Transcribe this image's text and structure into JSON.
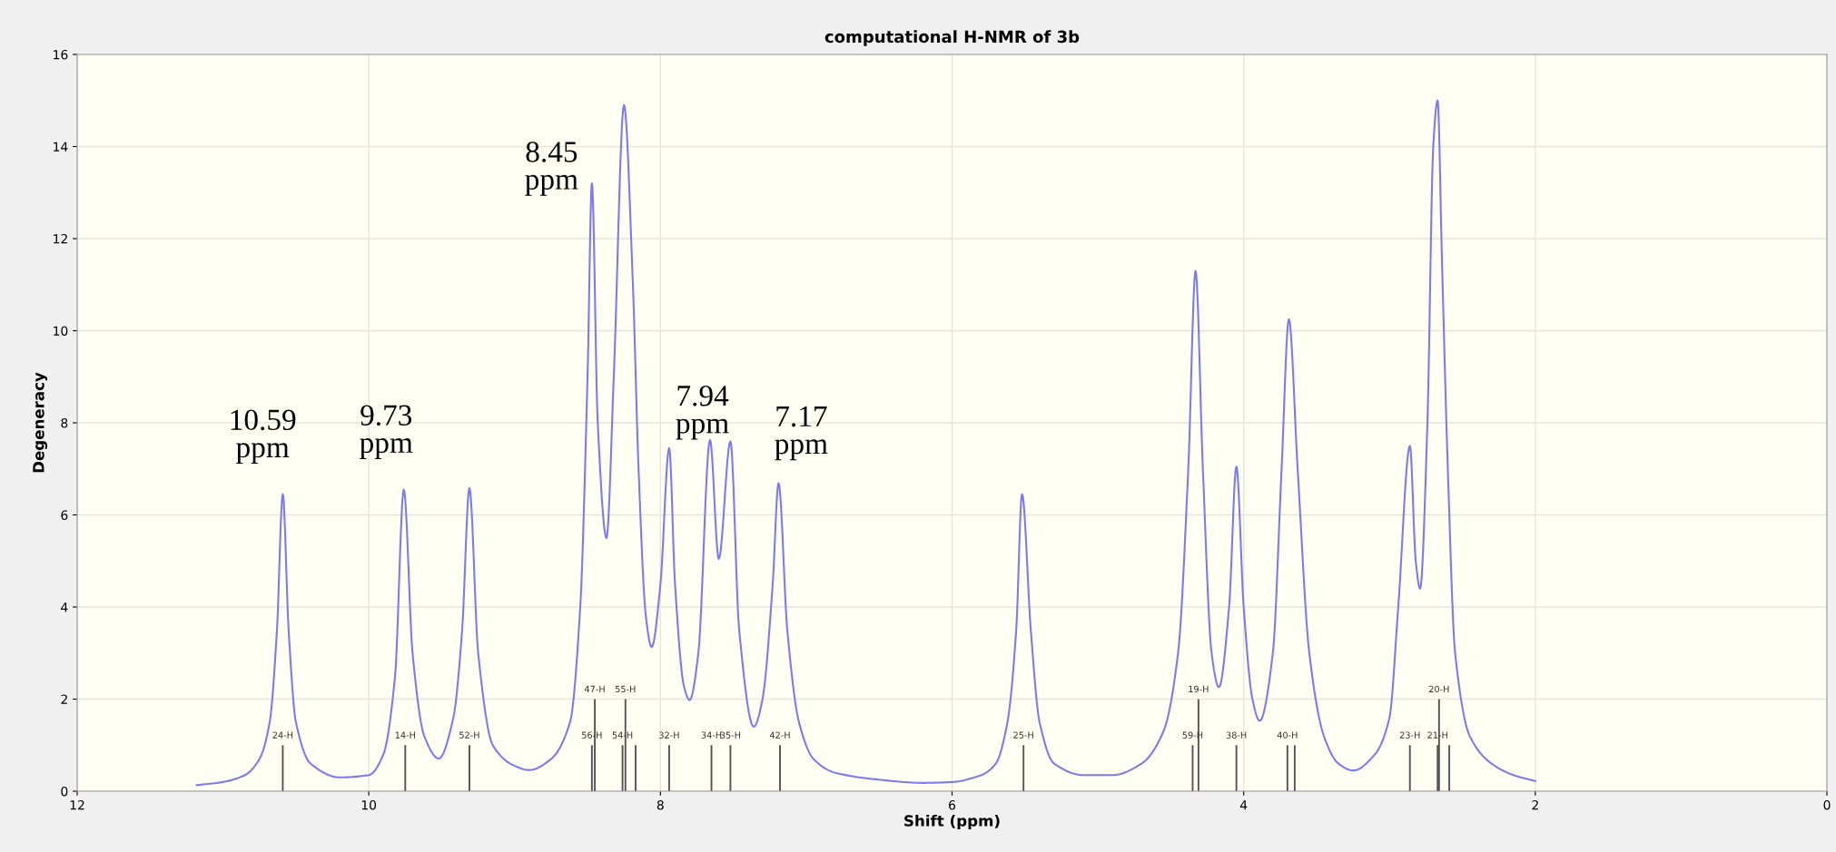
{
  "chart_data": {
    "type": "line",
    "title": "computational H-NMR of 3b",
    "xlabel": "Shift (ppm)",
    "ylabel": "Degeneracy",
    "xlim": [
      12,
      0
    ],
    "xticks": [
      12,
      10,
      8,
      6,
      4,
      2,
      0
    ],
    "ylim": [
      0,
      16
    ],
    "yticks": [
      0,
      2,
      4,
      6,
      8,
      10,
      12,
      14,
      16
    ],
    "grid": true,
    "legend": false,
    "marker": "none",
    "line_style": "solid",
    "series": [
      {
        "color": "#7b7bef",
        "x": [
          11.18,
          11.0,
          10.85,
          10.75,
          10.68,
          10.63,
          10.59,
          10.55,
          10.5,
          10.4,
          10.2,
          10.0,
          9.9,
          9.82,
          9.76,
          9.7,
          9.62,
          9.52,
          9.42,
          9.36,
          9.31,
          9.25,
          9.15,
          9.0,
          8.9,
          8.75,
          8.62,
          8.55,
          8.5,
          8.47,
          8.43,
          8.37,
          8.32,
          8.25,
          8.19,
          8.15,
          8.1,
          8.06,
          8.0,
          7.94,
          7.9,
          7.84,
          7.8,
          7.74,
          7.66,
          7.6,
          7.52,
          7.46,
          7.36,
          7.3,
          7.23,
          7.19,
          7.13,
          7.05,
          6.95,
          6.8,
          6.5,
          6.2,
          6.0,
          5.8,
          5.7,
          5.62,
          5.56,
          5.52,
          5.46,
          5.4,
          5.3,
          5.1,
          4.9,
          4.7,
          4.55,
          4.45,
          4.38,
          4.33,
          4.28,
          4.22,
          4.17,
          4.1,
          4.05,
          4.0,
          3.94,
          3.89,
          3.8,
          3.74,
          3.69,
          3.63,
          3.55,
          3.45,
          3.35,
          3.25,
          3.1,
          3.0,
          2.94,
          2.86,
          2.82,
          2.79,
          2.74,
          2.7,
          2.67,
          2.64,
          2.6,
          2.55,
          2.45,
          2.3,
          2.15,
          2.0
        ],
        "values": [
          0.13,
          0.2,
          0.35,
          0.7,
          1.5,
          3.5,
          6.45,
          3.5,
          1.5,
          0.6,
          0.3,
          0.35,
          0.8,
          2.5,
          6.55,
          3.0,
          1.2,
          0.71,
          1.6,
          3.5,
          6.58,
          3.0,
          1.0,
          0.55,
          0.46,
          0.7,
          1.5,
          4.0,
          9.0,
          13.2,
          8.0,
          5.5,
          9.0,
          14.9,
          11.1,
          7.0,
          3.8,
          3.13,
          4.5,
          7.45,
          4.5,
          2.3,
          1.98,
          3.0,
          7.63,
          5.04,
          7.6,
          3.5,
          1.4,
          2.0,
          4.5,
          6.69,
          3.5,
          1.5,
          0.7,
          0.4,
          0.25,
          0.18,
          0.2,
          0.35,
          0.6,
          1.5,
          3.5,
          6.45,
          3.5,
          1.5,
          0.6,
          0.35,
          0.35,
          0.6,
          1.3,
          3.0,
          7.0,
          11.3,
          7.0,
          3.0,
          2.26,
          4.0,
          7.05,
          4.0,
          2.0,
          1.53,
          3.0,
          7.0,
          10.25,
          7.0,
          3.0,
          1.2,
          0.6,
          0.45,
          0.8,
          1.6,
          4.0,
          7.5,
          5.0,
          4.4,
          8.0,
          14.0,
          15.0,
          11.5,
          7.0,
          3.0,
          1.2,
          0.6,
          0.35,
          0.22
        ]
      },
      {
        "type": "bar",
        "color": "#555555",
        "x": [
          10.59,
          9.75,
          9.31,
          8.47,
          8.45,
          8.26,
          8.24,
          8.17,
          7.94,
          7.65,
          7.52,
          7.18,
          5.51,
          4.35,
          4.31,
          4.05,
          3.7,
          3.65,
          2.86,
          2.67,
          2.66,
          2.59
        ],
        "values": [
          1,
          1,
          1,
          1,
          2,
          1,
          2,
          1,
          1,
          1,
          1,
          1,
          1,
          1,
          2,
          1,
          1,
          1,
          1,
          1,
          2,
          1
        ]
      }
    ],
    "annotations": [
      {
        "text": "10.59\nppm",
        "x": 10.59,
        "y": 6.45
      },
      {
        "text": "9.73\nppm",
        "x": 9.76,
        "y": 6.55
      },
      {
        "text": "8.45\nppm",
        "x": 8.47,
        "y": 13.2
      },
      {
        "text": "7.94\nppm",
        "x": 7.66,
        "y": 7.63
      },
      {
        "text": "7.17\nppm",
        "x": 7.19,
        "y": 6.69
      },
      {
        "text": "24-H",
        "x": 10.59,
        "y": 1
      },
      {
        "text": "14-H",
        "x": 9.75,
        "y": 1
      },
      {
        "text": "52-H",
        "x": 9.31,
        "y": 1
      },
      {
        "text": "56-H",
        "x": 8.47,
        "y": 1
      },
      {
        "text": "47-H",
        "x": 8.45,
        "y": 2
      },
      {
        "text": "54-H",
        "x": 8.26,
        "y": 1
      },
      {
        "text": "55-H",
        "x": 8.24,
        "y": 2
      },
      {
        "text": "32-H",
        "x": 7.94,
        "y": 1
      },
      {
        "text": "34-H",
        "x": 7.65,
        "y": 1
      },
      {
        "text": "35-H",
        "x": 7.52,
        "y": 1
      },
      {
        "text": "42-H",
        "x": 7.18,
        "y": 1
      },
      {
        "text": "25-H",
        "x": 5.51,
        "y": 1
      },
      {
        "text": "59-H",
        "x": 4.35,
        "y": 1
      },
      {
        "text": "19-H",
        "x": 4.31,
        "y": 2
      },
      {
        "text": "38-H",
        "x": 4.05,
        "y": 1
      },
      {
        "text": "40-H",
        "x": 3.7,
        "y": 1
      },
      {
        "text": "23-H",
        "x": 2.86,
        "y": 1
      },
      {
        "text": "21-H",
        "x": 2.67,
        "y": 1
      },
      {
        "text": "20-H",
        "x": 2.66,
        "y": 2
      }
    ]
  }
}
